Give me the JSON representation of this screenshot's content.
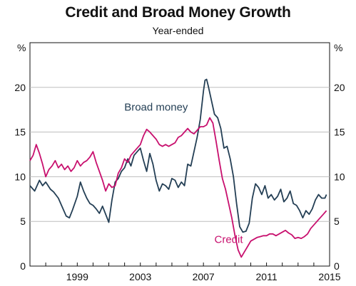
{
  "chart_data": {
    "type": "line",
    "title": "Credit and Broad Money Growth",
    "subtitle": "Year-ended",
    "y_unit_left": "%",
    "y_unit_right": "%",
    "xlim": [
      1996.0,
      2015.0
    ],
    "ylim": [
      0,
      25
    ],
    "x_ticks": [
      {
        "value": 1999.0,
        "label": "1999"
      },
      {
        "value": 2003.0,
        "label": "2003"
      },
      {
        "value": 2007.0,
        "label": "2007"
      },
      {
        "value": 2011.0,
        "label": "2011"
      },
      {
        "value": 2015.0,
        "label": "2015"
      }
    ],
    "y_ticks": [
      {
        "value": 0,
        "label": "0"
      },
      {
        "value": 5,
        "label": "5"
      },
      {
        "value": 10,
        "label": "10"
      },
      {
        "value": 15,
        "label": "15"
      },
      {
        "value": 20,
        "label": "20"
      }
    ],
    "grid": true,
    "series": [
      {
        "name": "Broad money",
        "color": "#243f55",
        "label_x": 1996.0,
        "points": [
          [
            1996.0,
            9.0
          ],
          [
            1996.3,
            8.4
          ],
          [
            1996.6,
            9.6
          ],
          [
            1996.8,
            9.0
          ],
          [
            1997.0,
            9.4
          ],
          [
            1997.3,
            8.6
          ],
          [
            1997.5,
            8.3
          ],
          [
            1997.8,
            7.6
          ],
          [
            1998.0,
            6.8
          ],
          [
            1998.3,
            5.6
          ],
          [
            1998.5,
            5.4
          ],
          [
            1998.7,
            6.3
          ],
          [
            1999.0,
            7.8
          ],
          [
            1999.2,
            9.4
          ],
          [
            1999.4,
            8.4
          ],
          [
            1999.6,
            7.6
          ],
          [
            1999.8,
            7.0
          ],
          [
            2000.0,
            6.8
          ],
          [
            2000.2,
            6.4
          ],
          [
            2000.4,
            5.9
          ],
          [
            2000.6,
            6.7
          ],
          [
            2000.8,
            5.8
          ],
          [
            2001.0,
            4.9
          ],
          [
            2001.2,
            7.4
          ],
          [
            2001.4,
            9.4
          ],
          [
            2001.6,
            9.8
          ],
          [
            2001.8,
            10.6
          ],
          [
            2002.0,
            11.0
          ],
          [
            2002.2,
            12.0
          ],
          [
            2002.4,
            11.2
          ],
          [
            2002.6,
            12.4
          ],
          [
            2002.8,
            12.8
          ],
          [
            2003.0,
            13.2
          ],
          [
            2003.2,
            11.8
          ],
          [
            2003.4,
            10.6
          ],
          [
            2003.6,
            12.6
          ],
          [
            2003.8,
            11.4
          ],
          [
            2004.0,
            9.6
          ],
          [
            2004.2,
            8.4
          ],
          [
            2004.4,
            9.2
          ],
          [
            2004.6,
            9.0
          ],
          [
            2004.8,
            8.6
          ],
          [
            2005.0,
            9.8
          ],
          [
            2005.2,
            9.6
          ],
          [
            2005.4,
            8.8
          ],
          [
            2005.6,
            9.4
          ],
          [
            2005.8,
            9.0
          ],
          [
            2006.0,
            11.4
          ],
          [
            2006.2,
            11.2
          ],
          [
            2006.4,
            12.8
          ],
          [
            2006.6,
            14.4
          ],
          [
            2006.8,
            16.4
          ],
          [
            2007.0,
            19.6
          ],
          [
            2007.1,
            20.8
          ],
          [
            2007.2,
            20.9
          ],
          [
            2007.3,
            20.2
          ],
          [
            2007.5,
            18.6
          ],
          [
            2007.7,
            17.0
          ],
          [
            2007.9,
            16.6
          ],
          [
            2008.1,
            15.4
          ],
          [
            2008.3,
            13.2
          ],
          [
            2008.5,
            13.4
          ],
          [
            2008.7,
            12.0
          ],
          [
            2008.9,
            10.0
          ],
          [
            2009.1,
            7.0
          ],
          [
            2009.3,
            4.4
          ],
          [
            2009.5,
            3.8
          ],
          [
            2009.7,
            3.9
          ],
          [
            2009.9,
            4.8
          ],
          [
            2010.1,
            7.6
          ],
          [
            2010.3,
            9.2
          ],
          [
            2010.5,
            8.8
          ],
          [
            2010.7,
            8.0
          ],
          [
            2010.9,
            9.0
          ],
          [
            2011.1,
            7.6
          ],
          [
            2011.3,
            8.0
          ],
          [
            2011.5,
            7.4
          ],
          [
            2011.7,
            7.8
          ],
          [
            2011.9,
            8.6
          ],
          [
            2012.1,
            7.2
          ],
          [
            2012.3,
            7.6
          ],
          [
            2012.5,
            8.4
          ],
          [
            2012.7,
            7.0
          ],
          [
            2012.9,
            6.8
          ],
          [
            2013.1,
            6.2
          ],
          [
            2013.3,
            5.4
          ],
          [
            2013.5,
            6.2
          ],
          [
            2013.7,
            5.8
          ],
          [
            2013.9,
            6.4
          ],
          [
            2014.1,
            7.4
          ],
          [
            2014.3,
            8.0
          ],
          [
            2014.5,
            7.6
          ],
          [
            2014.7,
            7.6
          ],
          [
            2014.8,
            8.0
          ]
        ]
      },
      {
        "name": "Credit",
        "color": "#c8106e",
        "points": [
          [
            1996.0,
            11.8
          ],
          [
            1996.2,
            12.4
          ],
          [
            1996.4,
            13.6
          ],
          [
            1996.6,
            12.6
          ],
          [
            1996.8,
            11.4
          ],
          [
            1997.0,
            10.0
          ],
          [
            1997.2,
            10.8
          ],
          [
            1997.4,
            11.2
          ],
          [
            1997.6,
            11.8
          ],
          [
            1997.8,
            11.0
          ],
          [
            1998.0,
            11.4
          ],
          [
            1998.2,
            10.8
          ],
          [
            1998.4,
            11.2
          ],
          [
            1998.6,
            10.6
          ],
          [
            1998.8,
            11.0
          ],
          [
            1999.0,
            11.8
          ],
          [
            1999.2,
            11.2
          ],
          [
            1999.4,
            11.6
          ],
          [
            1999.6,
            11.8
          ],
          [
            1999.8,
            12.2
          ],
          [
            2000.0,
            12.8
          ],
          [
            2000.2,
            11.6
          ],
          [
            2000.4,
            10.6
          ],
          [
            2000.6,
            9.6
          ],
          [
            2000.8,
            8.4
          ],
          [
            2001.0,
            9.2
          ],
          [
            2001.2,
            8.8
          ],
          [
            2001.4,
            9.0
          ],
          [
            2001.6,
            10.4
          ],
          [
            2001.8,
            11.0
          ],
          [
            2002.0,
            12.0
          ],
          [
            2002.2,
            11.6
          ],
          [
            2002.4,
            12.4
          ],
          [
            2002.6,
            12.8
          ],
          [
            2002.8,
            13.2
          ],
          [
            2003.0,
            13.6
          ],
          [
            2003.2,
            14.6
          ],
          [
            2003.4,
            15.3
          ],
          [
            2003.6,
            15.0
          ],
          [
            2003.8,
            14.6
          ],
          [
            2004.0,
            14.2
          ],
          [
            2004.2,
            13.6
          ],
          [
            2004.4,
            13.4
          ],
          [
            2004.6,
            13.6
          ],
          [
            2004.8,
            13.4
          ],
          [
            2005.0,
            13.6
          ],
          [
            2005.2,
            13.8
          ],
          [
            2005.4,
            14.4
          ],
          [
            2005.6,
            14.6
          ],
          [
            2005.8,
            15.0
          ],
          [
            2006.0,
            15.4
          ],
          [
            2006.2,
            15.0
          ],
          [
            2006.4,
            14.8
          ],
          [
            2006.6,
            15.2
          ],
          [
            2006.8,
            15.6
          ],
          [
            2007.0,
            15.6
          ],
          [
            2007.2,
            15.8
          ],
          [
            2007.4,
            16.6
          ],
          [
            2007.6,
            16.0
          ],
          [
            2007.8,
            14.0
          ],
          [
            2008.0,
            11.8
          ],
          [
            2008.2,
            9.8
          ],
          [
            2008.4,
            8.6
          ],
          [
            2008.6,
            7.0
          ],
          [
            2008.8,
            5.4
          ],
          [
            2009.0,
            3.4
          ],
          [
            2009.2,
            1.8
          ],
          [
            2009.4,
            1.0
          ],
          [
            2009.6,
            1.6
          ],
          [
            2009.8,
            2.2
          ],
          [
            2010.0,
            2.8
          ],
          [
            2010.2,
            3.0
          ],
          [
            2010.4,
            3.2
          ],
          [
            2010.6,
            3.3
          ],
          [
            2010.8,
            3.4
          ],
          [
            2011.0,
            3.4
          ],
          [
            2011.2,
            3.6
          ],
          [
            2011.4,
            3.6
          ],
          [
            2011.6,
            3.4
          ],
          [
            2011.8,
            3.6
          ],
          [
            2012.0,
            3.8
          ],
          [
            2012.2,
            4.0
          ],
          [
            2012.4,
            3.7
          ],
          [
            2012.6,
            3.5
          ],
          [
            2012.8,
            3.1
          ],
          [
            2013.0,
            3.2
          ],
          [
            2013.2,
            3.1
          ],
          [
            2013.4,
            3.3
          ],
          [
            2013.6,
            3.6
          ],
          [
            2013.8,
            4.2
          ],
          [
            2014.0,
            4.6
          ],
          [
            2014.2,
            5.0
          ],
          [
            2014.4,
            5.4
          ],
          [
            2014.6,
            5.8
          ],
          [
            2014.8,
            6.2
          ]
        ]
      }
    ],
    "annotations": [
      {
        "text": "Broad money",
        "x": 2004.0,
        "y": 17.4,
        "series": 0
      },
      {
        "text": "Credit",
        "x": 2008.6,
        "y": 2.6,
        "series": 1
      }
    ]
  }
}
